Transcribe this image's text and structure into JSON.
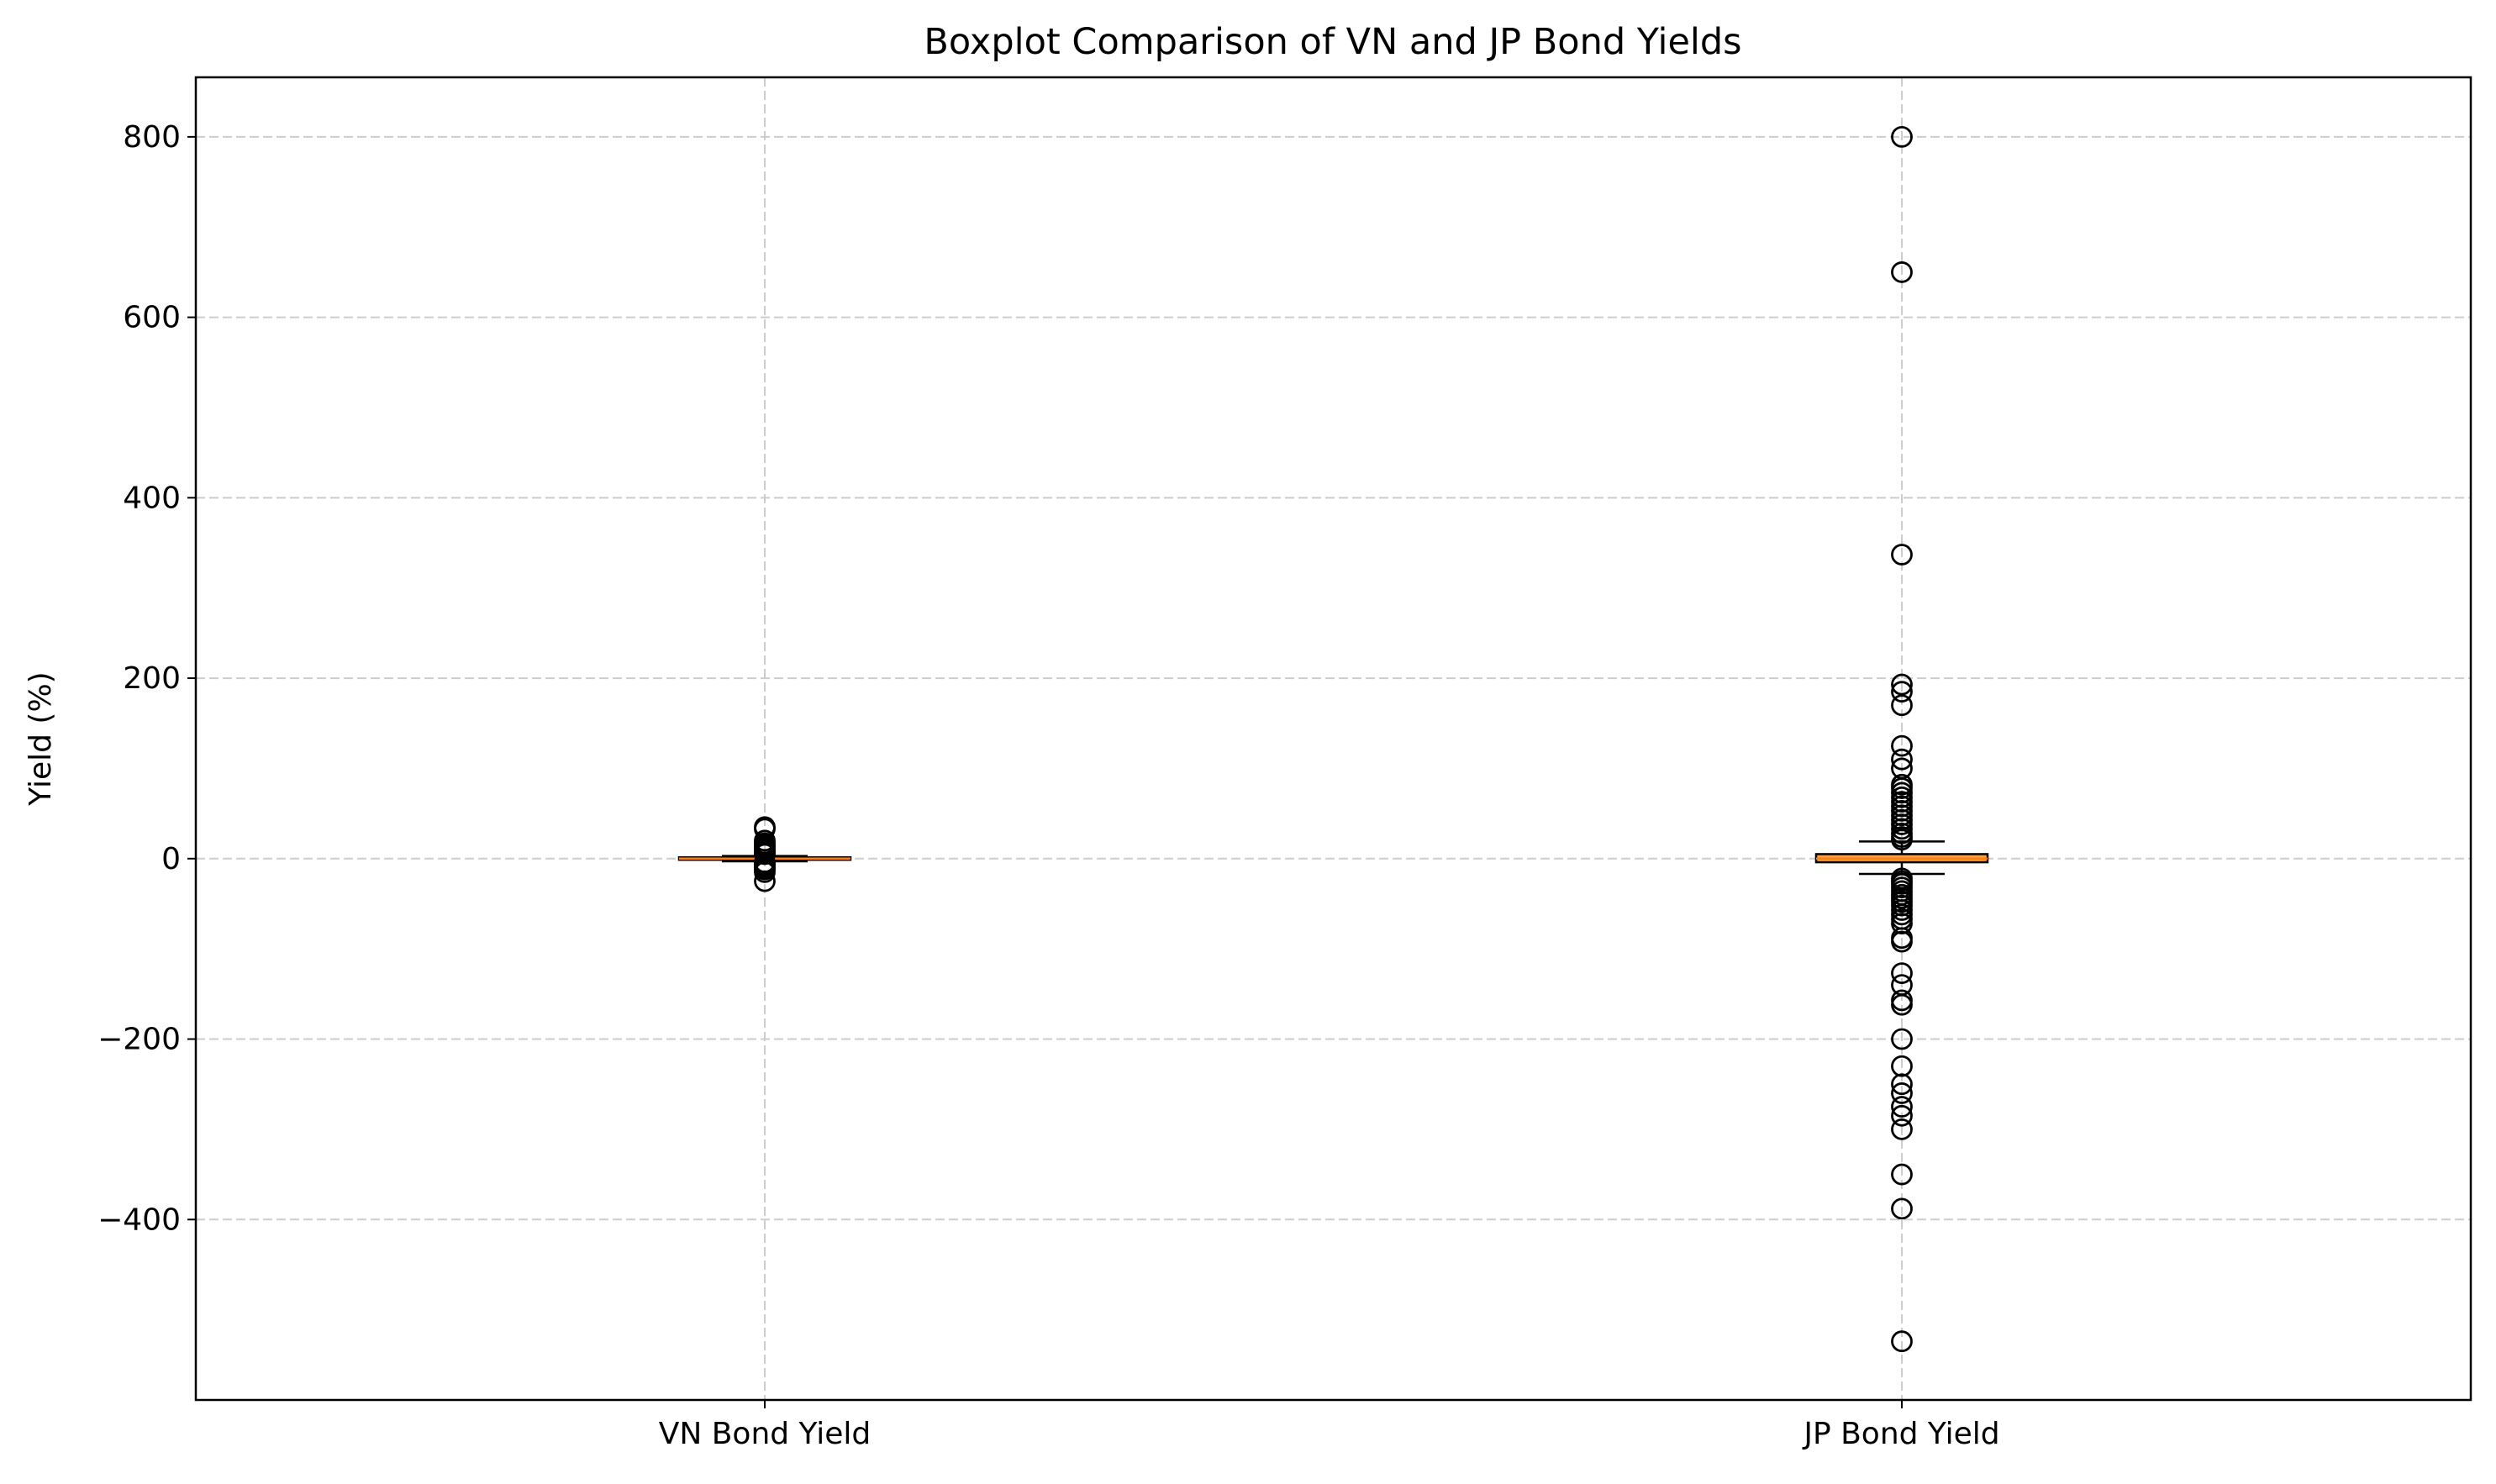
{
  "chart_data": {
    "type": "boxplot",
    "title": "Boxplot Comparison of VN and JP Bond Yields",
    "xlabel": "",
    "ylabel": "Yield (%)",
    "ylim": [
      -600,
      866
    ],
    "yticks": [
      -400,
      -200,
      0,
      200,
      400,
      600,
      800
    ],
    "grid": true,
    "categories": [
      "VN Bond Yield",
      "JP Bond Yield"
    ],
    "series": [
      {
        "category": "VN Bond Yield",
        "whisker_low": -3,
        "q1": -1,
        "median": 0,
        "q3": 1.5,
        "whisker_high": 3,
        "outliers": [
          35,
          33,
          20,
          17,
          15,
          13,
          11,
          9,
          8,
          6,
          5,
          -4,
          -5,
          -6,
          -8,
          -10,
          -12,
          -15,
          -25
        ]
      },
      {
        "category": "JP Bond Yield",
        "whisker_low": -17,
        "q1": -4,
        "median": 0,
        "q3": 5,
        "whisker_high": 19,
        "outliers": [
          800,
          650,
          337,
          193,
          185,
          170,
          125,
          110,
          100,
          82,
          78,
          73,
          68,
          63,
          58,
          53,
          48,
          43,
          38,
          33,
          28,
          24,
          21,
          -22,
          -25,
          -28,
          -32,
          -36,
          -40,
          -44,
          -48,
          -52,
          -57,
          -62,
          -67,
          -72,
          -88,
          -92,
          -127,
          -140,
          -157,
          -162,
          -200,
          -230,
          -250,
          -260,
          -275,
          -285,
          -300,
          -350,
          -388,
          -535
        ]
      }
    ],
    "colors": {
      "box_fill": "#f5a04a",
      "median": "#ff7f0e",
      "grid": "#cccccc",
      "axis": "#000000"
    }
  }
}
